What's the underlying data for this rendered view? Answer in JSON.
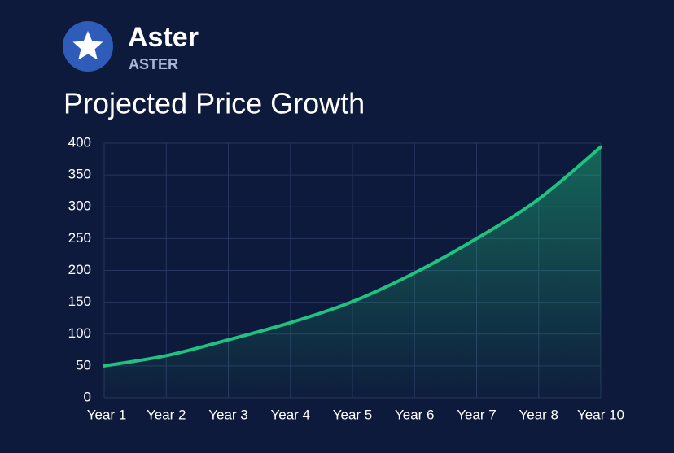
{
  "header": {
    "name": "Aster",
    "ticker": "ASTER"
  },
  "chart_data": {
    "type": "line",
    "title": "Projected Price Growth",
    "categories": [
      "Year 1",
      "Year 2",
      "Year 3",
      "Year 4",
      "Year 5",
      "Year 6",
      "Year 7",
      "Year 8",
      "Year 10"
    ],
    "values": [
      50,
      66,
      91,
      118,
      151,
      196,
      250,
      312,
      394
    ],
    "color": "#1fc27e",
    "ylim": [
      0,
      400
    ],
    "yticks": [
      0,
      50,
      100,
      150,
      200,
      250,
      300,
      350,
      400
    ],
    "grid": true
  }
}
